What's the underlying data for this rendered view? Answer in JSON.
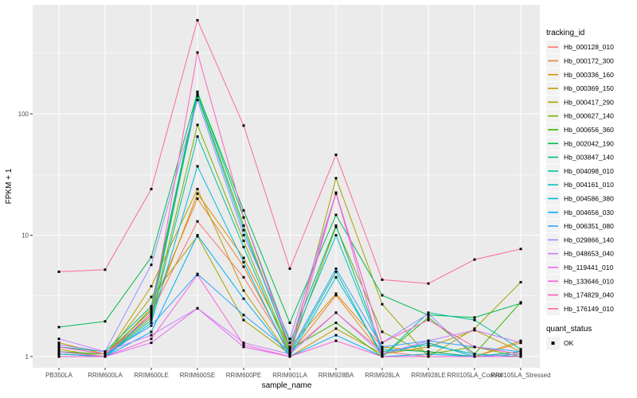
{
  "figure": {
    "panel_bg": "#EBEBEB",
    "grid_color": "#FFFFFF",
    "tick_label_color": "#4D4D4D",
    "title_color": "#000000",
    "legend_key_bg": "#F2F2F2",
    "point_color": "#000000"
  },
  "legends": {
    "tracking": {
      "title": "tracking_id"
    },
    "quant": {
      "title": "quant_status",
      "items": [
        {
          "label": "OK"
        }
      ]
    }
  },
  "chart_data": {
    "type": "line",
    "title": "",
    "xlabel": "sample_name",
    "ylabel": "FPKM + 1",
    "y_scale": "log10",
    "ylim": [
      0.9,
      790
    ],
    "y_ticks": [
      1,
      10,
      100
    ],
    "y_minor_ticks": [
      3.1623,
      31.623,
      316.23
    ],
    "grid": true,
    "legend_position": "right",
    "point_shape": "square",
    "categories": [
      "PB350LA",
      "RRIM600LA",
      "RRIM600LE",
      "RRIM600SE",
      "RRIM600PE",
      "RRIM901LA",
      "RRIM928BA",
      "RRIM928LA",
      "RRIM928LE",
      "RRII105LA_Control",
      "RRII105LA_Stressed"
    ],
    "series": [
      {
        "name": "Hb_000128_010",
        "color": "#F8766D",
        "values": [
          1.05,
          1.0,
          2.3,
          13,
          4.5,
          1.1,
          2.3,
          1.1,
          1.0,
          1.0,
          1.05
        ]
      },
      {
        "name": "Hb_000172_300",
        "color": "#EA8331",
        "values": [
          1.1,
          1.0,
          2.5,
          20,
          5.5,
          1.05,
          3.2,
          1.05,
          1.3,
          1.0,
          1.3
        ]
      },
      {
        "name": "Hb_000336_160",
        "color": "#D89000",
        "values": [
          1.3,
          1.05,
          2.2,
          22,
          6.5,
          1.2,
          3.3,
          1.2,
          1.1,
          1.0,
          1.35
        ]
      },
      {
        "name": "Hb_000369_150",
        "color": "#C09B00",
        "values": [
          1.15,
          1.0,
          3.8,
          24,
          3.5,
          1.0,
          1.7,
          1.05,
          1.2,
          1.65,
          1.1
        ]
      },
      {
        "name": "Hb_000417_290",
        "color": "#A3A500",
        "values": [
          1.0,
          1.0,
          3.1,
          9.8,
          2.0,
          1.05,
          29.5,
          2.7,
          1.0,
          1.7,
          4.1
        ]
      },
      {
        "name": "Hb_000627_140",
        "color": "#7CAE00",
        "values": [
          1.05,
          1.0,
          2.1,
          81,
          9.0,
          1.1,
          11.7,
          1.6,
          1.05,
          1.2,
          1.0
        ]
      },
      {
        "name": "Hb_000656_360",
        "color": "#39B600",
        "values": [
          1.1,
          1.05,
          2.4,
          145,
          12,
          1.15,
          1.9,
          1.0,
          2.1,
          1.05,
          2.8
        ]
      },
      {
        "name": "Hb_002042_190",
        "color": "#00BB4E",
        "values": [
          1.75,
          1.95,
          6.6,
          150,
          16,
          1.9,
          14.7,
          3.2,
          2.2,
          2.1,
          2.75
        ]
      },
      {
        "name": "Hb_003847_140",
        "color": "#00BF7D",
        "values": [
          1.2,
          1.1,
          2.6,
          152,
          14,
          1.3,
          12,
          1.15,
          1.1,
          1.0,
          1.1
        ]
      },
      {
        "name": "Hb_004098_010",
        "color": "#00C1A3",
        "values": [
          1.0,
          1.0,
          2.0,
          65,
          8,
          1.05,
          5.0,
          1.0,
          2.3,
          2.0,
          1.15
        ]
      },
      {
        "name": "Hb_004161_010",
        "color": "#00BFC4",
        "values": [
          1.1,
          1.0,
          2.2,
          140,
          11,
          1.2,
          10,
          1.1,
          1.25,
          1.05,
          1.0
        ]
      },
      {
        "name": "Hb_004586_380",
        "color": "#00BAE0",
        "values": [
          1.05,
          1.0,
          1.9,
          37,
          6,
          1.0,
          4.5,
          1.05,
          1.3,
          1.0,
          1.05
        ]
      },
      {
        "name": "Hb_004656_030",
        "color": "#00B0F6",
        "values": [
          1.0,
          1.0,
          1.6,
          10,
          3.0,
          1.0,
          1.5,
          1.0,
          1.05,
          1.0,
          1.0
        ]
      },
      {
        "name": "Hb_006351_080",
        "color": "#35A2FF",
        "values": [
          1.2,
          1.05,
          1.8,
          4.8,
          2.2,
          1.1,
          5.3,
          1.2,
          1.35,
          1.2,
          1.1
        ]
      },
      {
        "name": "Hb_029866_140",
        "color": "#9590FF",
        "values": [
          1.25,
          1.1,
          5.7,
          130,
          10,
          1.4,
          22.4,
          1.3,
          2.25,
          1.0,
          1.05
        ]
      },
      {
        "name": "Hb_048653_040",
        "color": "#C77CFF",
        "values": [
          1.4,
          1.1,
          1.5,
          2.5,
          1.3,
          1.05,
          2.3,
          1.05,
          1.35,
          1.65,
          1.3
        ]
      },
      {
        "name": "Hb_119441_010",
        "color": "#E76BF3",
        "values": [
          1.1,
          1.0,
          1.3,
          2.5,
          1.2,
          1.0,
          22.4,
          1.0,
          1.0,
          1.0,
          1.0
        ]
      },
      {
        "name": "Hb_133646_010",
        "color": "#FA62DB",
        "values": [
          1.0,
          1.0,
          1.4,
          4.7,
          1.25,
          1.0,
          1.35,
          1.0,
          1.0,
          1.0,
          1.0
        ]
      },
      {
        "name": "Hb_174829_040",
        "color": "#FF62BC",
        "values": [
          1.2,
          1.05,
          2.2,
          320,
          14,
          1.2,
          22,
          1.3,
          2.0,
          1.2,
          1.05
        ]
      },
      {
        "name": "Hb_176149_010",
        "color": "#FF6A98",
        "values": [
          5.0,
          5.2,
          24,
          590,
          80,
          5.3,
          46,
          4.3,
          4.0,
          6.3,
          7.7
        ]
      }
    ]
  }
}
